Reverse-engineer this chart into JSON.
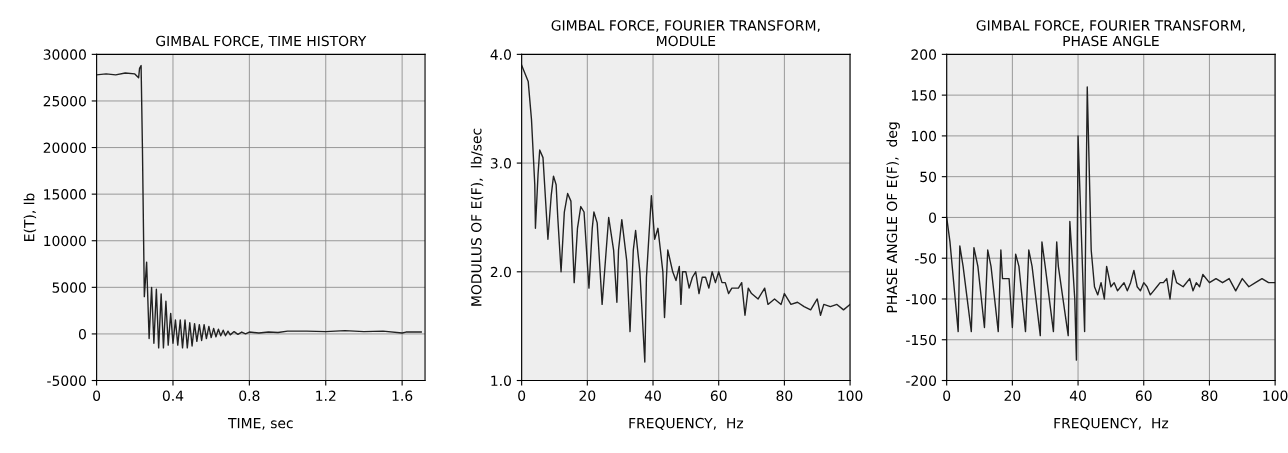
{
  "chart_data": [
    {
      "type": "line",
      "title": "GIMBAL FORCE, TIME HISTORY",
      "xlabel": "TIME, sec",
      "ylabel": "E(T), lb",
      "grid": true,
      "marker": "none",
      "line_style": "solid",
      "xlim": [
        0,
        1.72
      ],
      "xticks": [
        0,
        0.4,
        0.8,
        1.2,
        1.6
      ],
      "ylim": [
        -5000,
        30000
      ],
      "yticks": [
        -5000,
        0,
        5000,
        10000,
        15000,
        20000,
        25000,
        30000
      ],
      "series": [
        {
          "color": "#222222",
          "x": [
            0,
            0.05,
            0.1,
            0.15,
            0.2,
            0.22,
            0.225,
            0.233,
            0.24,
            0.25,
            0.262,
            0.275,
            0.288,
            0.3,
            0.313,
            0.325,
            0.338,
            0.35,
            0.363,
            0.375,
            0.388,
            0.4,
            0.413,
            0.425,
            0.438,
            0.45,
            0.463,
            0.475,
            0.488,
            0.5,
            0.513,
            0.525,
            0.538,
            0.55,
            0.563,
            0.575,
            0.588,
            0.6,
            0.613,
            0.625,
            0.638,
            0.65,
            0.663,
            0.675,
            0.688,
            0.7,
            0.72,
            0.74,
            0.76,
            0.78,
            0.8,
            0.85,
            0.9,
            0.95,
            1.0,
            1.1,
            1.2,
            1.3,
            1.4,
            1.5,
            1.6,
            1.62,
            1.7
          ],
          "values": [
            27800,
            27900,
            27800,
            28000,
            27900,
            27500,
            28500,
            28800,
            20000,
            4000,
            7700,
            -500,
            5000,
            -1000,
            4800,
            -1500,
            4300,
            -1500,
            3500,
            -1200,
            2200,
            -1000,
            1500,
            -1200,
            1500,
            -1500,
            1500,
            -1500,
            1200,
            -1300,
            1100,
            -800,
            1000,
            -700,
            1000,
            -500,
            800,
            -400,
            600,
            -300,
            500,
            -200,
            400,
            -200,
            300,
            -100,
            250,
            -50,
            200,
            0,
            200,
            100,
            200,
            150,
            300,
            300,
            250,
            350,
            250,
            300,
            100,
            200,
            200
          ]
        }
      ]
    },
    {
      "type": "line",
      "title": "GIMBAL FORCE, FOURIER TRANSFORM,\nMODULE",
      "xlabel": "FREQUENCY,  Hz",
      "ylabel": "MODULUS OF E(F),  lb/sec",
      "grid": true,
      "marker": "none",
      "line_style": "solid",
      "xlim": [
        0,
        100
      ],
      "xticks": [
        0,
        20,
        40,
        60,
        80,
        100
      ],
      "ylim": [
        1.0,
        4.0
      ],
      "yticks": [
        {
          "value": 1.0,
          "label": "1.0"
        },
        {
          "value": 2.0,
          "label": "2.0"
        },
        {
          "value": 3.0,
          "label": "3.0"
        },
        {
          "value": 4.0,
          "label": "4.0"
        }
      ],
      "series": [
        {
          "color": "#222222",
          "x": [
            0,
            2,
            3,
            4,
            4.2,
            5,
            5.5,
            6.5,
            7,
            8,
            9,
            9.7,
            10.5,
            11,
            12,
            13,
            14,
            15,
            16,
            17,
            18,
            19,
            20.5,
            21.5,
            22,
            23,
            24.5,
            26,
            26.5,
            28,
            29,
            29.5,
            30.5,
            32,
            33,
            34,
            34.7,
            36,
            37.5,
            38,
            39.5,
            40.5,
            41.5,
            43,
            43.5,
            44.5,
            46,
            47,
            48,
            48.5,
            49,
            50,
            51,
            52,
            53,
            54,
            55,
            56,
            57,
            58,
            59,
            60,
            61,
            62,
            63,
            64,
            66,
            67,
            68,
            69,
            70,
            72,
            74,
            75,
            77,
            79,
            80,
            82,
            84,
            86,
            88,
            90,
            91,
            92,
            94,
            96,
            98,
            100
          ],
          "values": [
            3.9,
            3.75,
            3.4,
            2.8,
            2.4,
            2.9,
            3.12,
            3.05,
            2.8,
            2.3,
            2.7,
            2.88,
            2.8,
            2.5,
            2.0,
            2.55,
            2.72,
            2.65,
            1.9,
            2.4,
            2.6,
            2.55,
            1.85,
            2.4,
            2.55,
            2.45,
            1.7,
            2.3,
            2.5,
            2.2,
            1.72,
            2.2,
            2.48,
            2.1,
            1.45,
            2.2,
            2.38,
            2.0,
            1.17,
            1.95,
            2.7,
            2.3,
            2.4,
            2.0,
            1.58,
            2.2,
            2.0,
            1.92,
            2.05,
            1.7,
            2.0,
            2.0,
            1.85,
            1.95,
            2.0,
            1.8,
            1.95,
            1.95,
            1.85,
            2.0,
            1.9,
            2.0,
            1.9,
            1.9,
            1.8,
            1.85,
            1.85,
            1.9,
            1.6,
            1.85,
            1.8,
            1.75,
            1.85,
            1.7,
            1.75,
            1.7,
            1.8,
            1.7,
            1.72,
            1.68,
            1.65,
            1.75,
            1.6,
            1.7,
            1.68,
            1.7,
            1.65,
            1.7
          ]
        }
      ]
    },
    {
      "type": "line",
      "title": "GIMBAL FORCE, FOURIER TRANSFORM,\nPHASE ANGLE",
      "xlabel": "FREQUENCY,  Hz",
      "ylabel": "PHASE ANGLE OF E(F),  deg",
      "grid": true,
      "marker": "none",
      "line_style": "solid",
      "xlim": [
        0,
        100
      ],
      "xticks": [
        0,
        20,
        40,
        60,
        80,
        100
      ],
      "ylim": [
        -200,
        200
      ],
      "yticks": [
        -200,
        -150,
        -100,
        -50,
        0,
        50,
        100,
        150,
        200
      ],
      "series": [
        {
          "color": "#222222",
          "x": [
            0,
            1,
            3.5,
            4,
            5,
            7.5,
            8.3,
            9.5,
            11.5,
            12.5,
            13.5,
            15.7,
            16.5,
            17,
            19,
            20,
            21,
            22,
            24,
            25,
            26,
            28.5,
            29,
            30,
            32.5,
            33.5,
            34,
            37,
            37.5,
            39,
            39.5,
            40,
            42,
            42.8,
            44,
            45,
            46,
            47,
            48,
            48.7,
            50,
            51,
            52,
            53,
            54,
            55,
            56,
            57,
            58,
            59,
            60,
            61,
            62,
            63,
            64,
            65,
            66,
            67,
            68,
            69,
            70,
            72,
            74,
            75,
            76,
            77,
            78,
            80,
            82,
            84,
            86,
            88,
            90,
            92,
            94,
            96,
            98,
            100
          ],
          "values": [
            0,
            -30,
            -140,
            -35,
            -60,
            -140,
            -37,
            -60,
            -135,
            -40,
            -60,
            -140,
            -40,
            -75,
            -75,
            -135,
            -45,
            -60,
            -140,
            -40,
            -60,
            -145,
            -30,
            -60,
            -140,
            -30,
            -60,
            -145,
            -5,
            -100,
            -175,
            100,
            -140,
            160,
            -40,
            -85,
            -95,
            -80,
            -100,
            -60,
            -85,
            -80,
            -90,
            -85,
            -80,
            -90,
            -80,
            -65,
            -85,
            -90,
            -80,
            -85,
            -95,
            -90,
            -85,
            -80,
            -80,
            -75,
            -100,
            -65,
            -80,
            -85,
            -75,
            -90,
            -80,
            -85,
            -70,
            -80,
            -75,
            -80,
            -75,
            -90,
            -75,
            -85,
            -80,
            -75,
            -80,
            -80
          ]
        }
      ]
    }
  ]
}
